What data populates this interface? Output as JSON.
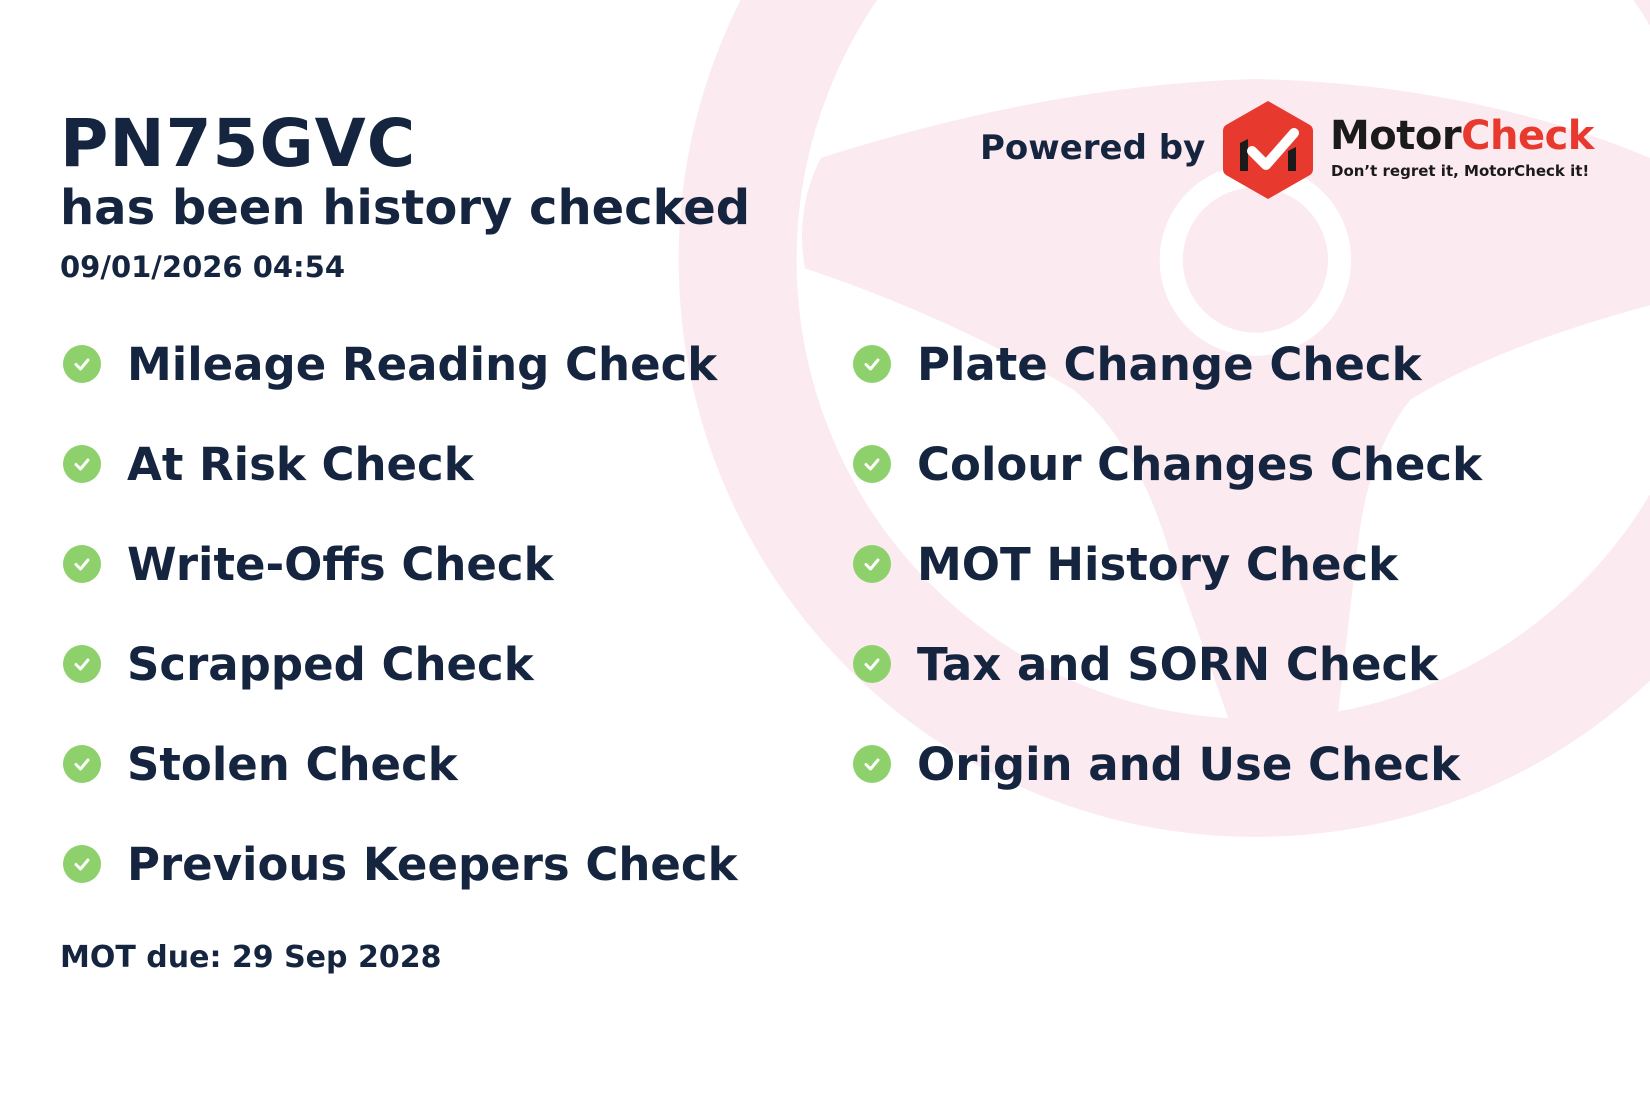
{
  "header": {
    "plate": "PN75GVC",
    "subtitle": "has been history checked",
    "datetime": "09/01/2026 04:54"
  },
  "branding": {
    "powered_by": "Powered by",
    "brand_part1": "Motor",
    "brand_part2": "Check",
    "tagline": "Don’t regret it, MotorCheck it!",
    "brand_red": "#e8392f",
    "check_green": "#8ed06b",
    "background_pink": "#fbeaef"
  },
  "checks_left": [
    {
      "label": "Mileage Reading Check",
      "icon": "check-circle-icon"
    },
    {
      "label": "At Risk Check",
      "icon": "check-circle-icon"
    },
    {
      "label": "Write-Offs Check",
      "icon": "check-circle-icon"
    },
    {
      "label": "Scrapped Check",
      "icon": "check-circle-icon"
    },
    {
      "label": "Stolen Check",
      "icon": "check-circle-icon"
    },
    {
      "label": "Previous Keepers Check",
      "icon": "check-circle-icon"
    }
  ],
  "checks_right": [
    {
      "label": "Plate Change Check",
      "icon": "check-circle-icon"
    },
    {
      "label": "Colour Changes Check",
      "icon": "check-circle-icon"
    },
    {
      "label": "MOT History Check",
      "icon": "check-circle-icon"
    },
    {
      "label": "Tax and SORN Check",
      "icon": "check-circle-icon"
    },
    {
      "label": "Origin and Use Check",
      "icon": "check-circle-icon"
    }
  ],
  "footer": {
    "mot_due": "MOT due: 29 Sep 2028"
  }
}
